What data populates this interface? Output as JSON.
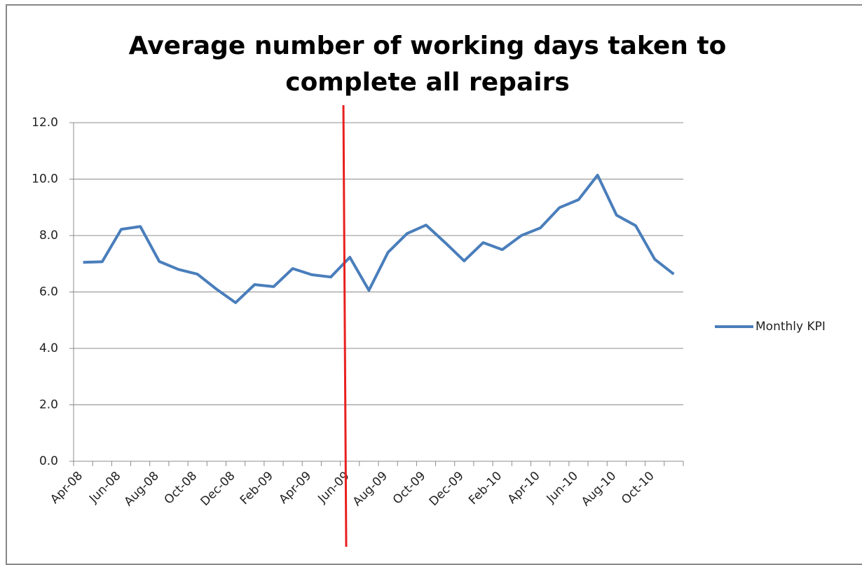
{
  "chart_data": {
    "type": "line",
    "title": "Average number of working days taken to complete all repairs",
    "categories": [
      "Apr-08",
      null,
      "Jun-08",
      null,
      "Aug-08",
      null,
      "Oct-08",
      null,
      "Dec-08",
      null,
      "Feb-09",
      null,
      "Apr-09",
      null,
      "Jun-09",
      null,
      "Aug-09",
      null,
      "Oct-09",
      null,
      "Dec-09",
      null,
      "Feb-10",
      null,
      "Apr-10",
      null,
      "Jun-10",
      null,
      "Aug-10",
      null,
      "Oct-10",
      null
    ],
    "series": [
      {
        "name": "Monthly KPI",
        "color": "#4a7ebb",
        "values": [
          7.05,
          7.07,
          8.22,
          8.32,
          7.08,
          6.8,
          6.63,
          6.1,
          5.62,
          6.26,
          6.19,
          6.83,
          6.61,
          6.53,
          7.23,
          6.06,
          7.4,
          8.07,
          8.37,
          7.75,
          7.1,
          7.75,
          7.5,
          8.0,
          8.27,
          8.99,
          9.27,
          10.14,
          8.72,
          8.35,
          7.16,
          6.63
        ]
      }
    ],
    "ylim": [
      0,
      12
    ],
    "yticks": [
      {
        "value": 0,
        "label": "0.0"
      },
      {
        "value": 2,
        "label": "2.0"
      },
      {
        "value": 4,
        "label": "4.0"
      },
      {
        "value": 6,
        "label": "6.0"
      },
      {
        "value": 8,
        "label": "8.0"
      },
      {
        "value": 10,
        "label": "10.0"
      },
      {
        "value": 12,
        "label": "12.0"
      }
    ],
    "grid": true,
    "legend": "right"
  }
}
